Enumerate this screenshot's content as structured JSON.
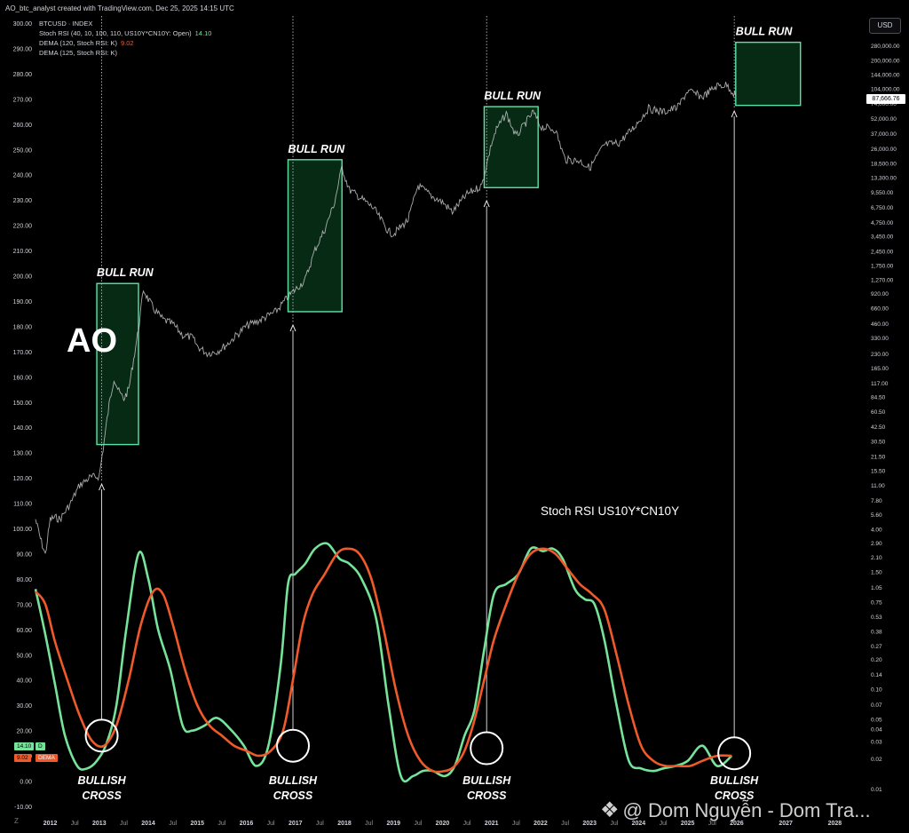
{
  "header": {
    "credit": "AO_btc_analyst created with TradingView.com, Dec 25, 2025 14:15 UTC",
    "symbol": "BTCUSD · INDEX",
    "ind1_label": "Stoch RSI (40, 10, 100, 110, US10Y*CN10Y: Open)",
    "ind1_value": "14.10",
    "ind2_label": "DEMA (120, Stoch RSI: K)",
    "ind2_value": "9.02",
    "ind3_label": "DEMA (125, Stoch RSI: K)",
    "currency_button": "USD",
    "last_price": "87,666.76"
  },
  "rsi_tags": {
    "k": "14.10",
    "k_letter": "D",
    "d": "9.02",
    "d_letter": "DEMA"
  },
  "watermark": {
    "icon": "binance-diamond-icon",
    "text": "@ Dom Nguyễn - Dom Tra..."
  },
  "colors": {
    "background": "#000000",
    "price": "#c8c8c8",
    "stoch_k": "#76e39a",
    "stoch_d": "#f05a2a",
    "box_fill": "#062a14",
    "box_stroke": "#5ee3a6",
    "grid_text": "#d1d4dc"
  },
  "chart_data": {
    "type": "line",
    "title": "",
    "annotations": {
      "ao_label": "AO",
      "stoch_label": "Stoch RSI US10Y*CN10Y",
      "bull_run": "BULL RUN",
      "bullish_cross_line1": "BULLISH",
      "bullish_cross_line2": "CROSS"
    },
    "left_axis": {
      "labels": [
        "300.00",
        "290.00",
        "280.00",
        "270.00",
        "260.00",
        "250.00",
        "240.00",
        "230.00",
        "220.00",
        "210.00",
        "200.00",
        "190.00",
        "180.00",
        "170.00",
        "160.00",
        "150.00",
        "140.00",
        "130.00",
        "120.00",
        "110.00",
        "100.00",
        "90.00",
        "80.00",
        "70.00",
        "60.00",
        "50.00",
        "40.00",
        "30.00",
        "20.00",
        "10.00",
        "0.00",
        "-10.00"
      ],
      "range": [
        -10,
        300
      ]
    },
    "right_axis": {
      "scale": "log",
      "labels": [
        "280,000.00",
        "200,000.00",
        "144,000.00",
        "104,000.00",
        "74,000.00",
        "52,000.00",
        "37,000.00",
        "26,000.00",
        "18,500.00",
        "13,300.00",
        "9,550.00",
        "6,750.00",
        "4,750.00",
        "3,450.00",
        "2,450.00",
        "1,750.00",
        "1,270.00",
        "920.00",
        "660.00",
        "460.00",
        "330.00",
        "230.00",
        "165.00",
        "117.00",
        "84.50",
        "60.50",
        "42.50",
        "30.50",
        "21.50",
        "15.50",
        "11.00",
        "7.80",
        "5.60",
        "4.00",
        "2.90",
        "2.10",
        "1.50",
        "1.05",
        "0.75",
        "0.53",
        "0.38",
        "0.27",
        "0.20",
        "0.14",
        "0.10",
        "0.07",
        "0.05",
        "0.04",
        "0.03",
        "0.02",
        "0.01"
      ]
    },
    "x_axis": {
      "ticks": [
        "2012",
        "Jul",
        "2013",
        "Jul",
        "2014",
        "Jul",
        "2015",
        "Jul",
        "2016",
        "Jul",
        "2017",
        "Jul",
        "2018",
        "Jul",
        "2019",
        "Jul",
        "2020",
        "Jul",
        "2021",
        "Jul",
        "2022",
        "Jul",
        "2023",
        "Jul",
        "2024",
        "Jul",
        "2025",
        "Jul",
        "2026",
        "2027",
        "2028"
      ],
      "range": [
        2011.7,
        2028.5
      ]
    },
    "series": [
      {
        "name": "BTCUSD",
        "axis": "right",
        "x": [
          2011.7,
          2011.8,
          2011.9,
          2012.0,
          2012.1,
          2012.2,
          2012.4,
          2012.6,
          2012.8,
          2013.0,
          2013.1,
          2013.2,
          2013.3,
          2013.4,
          2013.5,
          2013.6,
          2013.7,
          2013.8,
          2013.9,
          2014.0,
          2014.1,
          2014.3,
          2014.5,
          2014.7,
          2014.9,
          2015.0,
          2015.2,
          2015.4,
          2015.6,
          2015.8,
          2016.0,
          2016.3,
          2016.6,
          2016.9,
          2017.0,
          2017.2,
          2017.4,
          2017.6,
          2017.8,
          2017.95,
          2018.0,
          2018.1,
          2018.3,
          2018.6,
          2018.9,
          2019.0,
          2019.3,
          2019.5,
          2019.8,
          2020.0,
          2020.2,
          2020.5,
          2020.8,
          2021.0,
          2021.1,
          2021.3,
          2021.5,
          2021.7,
          2021.85,
          2022.0,
          2022.3,
          2022.5,
          2022.8,
          2023.0,
          2023.3,
          2023.6,
          2023.9,
          2024.2,
          2024.5,
          2024.8,
          2025.0,
          2025.3,
          2025.6,
          2025.8,
          2025.98
        ],
        "values": [
          5.0,
          3.2,
          2.2,
          5.0,
          5.2,
          5.0,
          7.0,
          11.0,
          13.0,
          13.5,
          30,
          70,
          130,
          95,
          80,
          100,
          200,
          400,
          1000,
          800,
          650,
          500,
          450,
          350,
          330,
          270,
          230,
          240,
          280,
          350,
          430,
          500,
          600,
          900,
          1000,
          1250,
          2500,
          4000,
          7500,
          17000,
          14000,
          10000,
          8500,
          6500,
          3800,
          3600,
          5000,
          11000,
          8500,
          7500,
          6000,
          9000,
          11000,
          29000,
          40000,
          58000,
          34000,
          47000,
          60000,
          43000,
          40000,
          20000,
          19500,
          16500,
          28000,
          29500,
          42000,
          65000,
          60000,
          67000,
          98000,
          85000,
          110000,
          112000,
          87666
        ]
      },
      {
        "name": "Stoch RSI",
        "axis": "left",
        "x": [
          2011.7,
          2011.9,
          2012.1,
          2012.3,
          2012.55,
          2012.75,
          2012.95,
          2013.15,
          2013.35,
          2013.55,
          2013.8,
          2014.0,
          2014.2,
          2014.45,
          2014.7,
          2014.9,
          2015.15,
          2015.4,
          2015.7,
          2015.95,
          2016.2,
          2016.45,
          2016.7,
          2016.85,
          2017.0,
          2017.2,
          2017.4,
          2017.65,
          2017.9,
          2018.1,
          2018.35,
          2018.65,
          2018.9,
          2019.15,
          2019.4,
          2019.6,
          2019.8,
          2020.05,
          2020.25,
          2020.45,
          2020.65,
          2020.85,
          2021.05,
          2021.3,
          2021.55,
          2021.8,
          2022.05,
          2022.25,
          2022.45,
          2022.7,
          2022.9,
          2023.1,
          2023.3,
          2023.55,
          2023.8,
          2024.05,
          2024.3,
          2024.5,
          2024.75,
          2025.0,
          2025.3,
          2025.6,
          2025.9
        ],
        "values": [
          76,
          58,
          38,
          18,
          6,
          5,
          8,
          15,
          30,
          60,
          90,
          80,
          60,
          44,
          22,
          20,
          22,
          25,
          20,
          14,
          6,
          14,
          46,
          78,
          82,
          86,
          92,
          94,
          88,
          86,
          80,
          64,
          30,
          2,
          2,
          4,
          4,
          2,
          6,
          18,
          28,
          52,
          74,
          78,
          82,
          92,
          91,
          92,
          88,
          76,
          72,
          70,
          56,
          30,
          8,
          5,
          4,
          5,
          6,
          8,
          14,
          6,
          10
        ]
      },
      {
        "name": "DEMA",
        "axis": "left",
        "x": [
          2011.7,
          2011.9,
          2012.1,
          2012.35,
          2012.6,
          2012.85,
          2013.1,
          2013.35,
          2013.6,
          2013.85,
          2014.1,
          2014.3,
          2014.5,
          2014.75,
          2015.0,
          2015.25,
          2015.5,
          2015.75,
          2016.0,
          2016.25,
          2016.5,
          2016.75,
          2016.95,
          2017.15,
          2017.35,
          2017.6,
          2017.85,
          2018.05,
          2018.3,
          2018.55,
          2018.8,
          2019.05,
          2019.3,
          2019.55,
          2019.8,
          2020.05,
          2020.25,
          2020.45,
          2020.65,
          2020.85,
          2021.05,
          2021.3,
          2021.55,
          2021.8,
          2022.05,
          2022.3,
          2022.55,
          2022.8,
          2023.05,
          2023.3,
          2023.55,
          2023.8,
          2024.05,
          2024.3,
          2024.55,
          2024.8,
          2025.05,
          2025.3,
          2025.6,
          2025.9
        ],
        "values": [
          75,
          70,
          55,
          40,
          26,
          16,
          14,
          22,
          40,
          62,
          75,
          74,
          62,
          44,
          30,
          22,
          18,
          14,
          12,
          10,
          12,
          20,
          40,
          62,
          74,
          82,
          90,
          92,
          90,
          80,
          60,
          36,
          18,
          8,
          4,
          4,
          6,
          12,
          24,
          40,
          56,
          70,
          82,
          90,
          92,
          90,
          84,
          78,
          74,
          68,
          50,
          30,
          14,
          8,
          6,
          6,
          6,
          8,
          10,
          10
        ]
      }
    ],
    "bull_run_boxes": [
      {
        "label": "BULL RUN",
        "x_start": 2012.95,
        "x_end": 2013.8,
        "y_bottom": 28,
        "y_top": 1150
      },
      {
        "label": "BULL RUN",
        "x_start": 2016.85,
        "x_end": 2017.95,
        "y_bottom": 600,
        "y_top": 20000
      },
      {
        "label": "BULL RUN",
        "x_start": 2020.85,
        "x_end": 2021.95,
        "y_bottom": 10500,
        "y_top": 68000
      },
      {
        "label": "BULL RUN",
        "x_start": 2025.98,
        "x_end": 2027.3,
        "y_bottom": 70000,
        "y_top": 300000
      }
    ],
    "bullish_crosses": [
      {
        "x": 2013.05,
        "y": 18,
        "label": "BULLISH CROSS"
      },
      {
        "x": 2016.95,
        "y": 14,
        "label": "BULLISH CROSS"
      },
      {
        "x": 2020.9,
        "y": 13,
        "label": "BULLISH CROSS"
      },
      {
        "x": 2025.95,
        "y": 11,
        "label": "BULLISH CROSS"
      }
    ],
    "grid": false,
    "legend": "top-left"
  }
}
